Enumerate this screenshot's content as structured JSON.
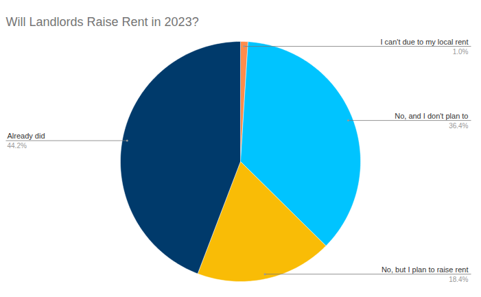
{
  "chart_data": {
    "type": "pie",
    "title": "Will Landlords Raise Rent in 2023?",
    "categories": [
      "I can't due to my local rent",
      "No, and I don't plan to",
      "No, but I plan to raise rent",
      "Already did"
    ],
    "values": [
      1.0,
      36.4,
      18.4,
      44.2
    ],
    "value_labels": [
      "1.0%",
      "36.4%",
      "18.4%",
      "44.2%"
    ],
    "colors": [
      "#ff8c4a",
      "#00c4ff",
      "#f9bc06",
      "#003a6b"
    ],
    "data_labels": true
  }
}
